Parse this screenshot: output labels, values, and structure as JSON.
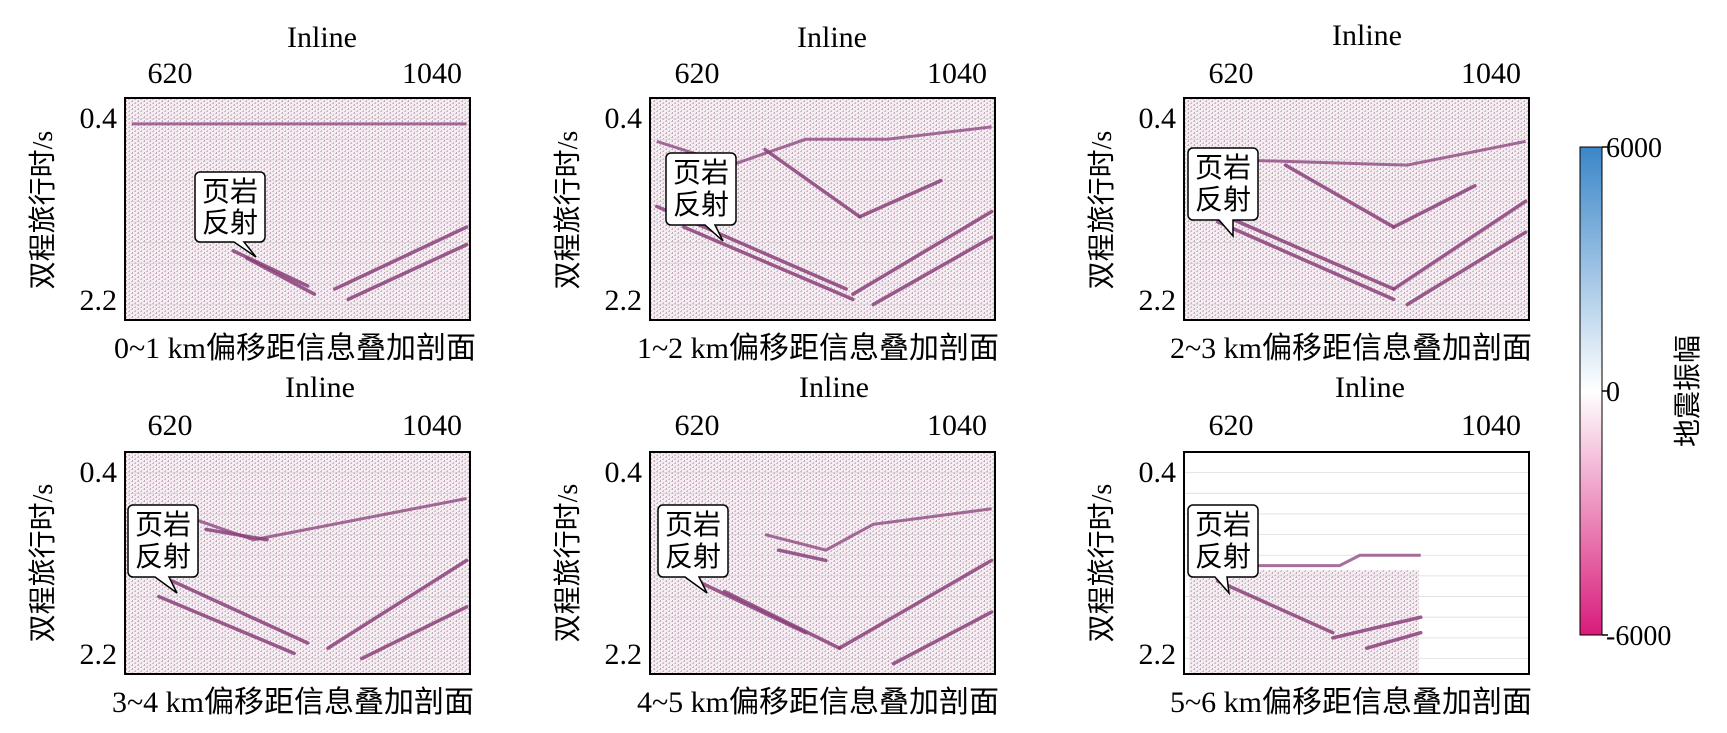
{
  "chart_data": [
    {
      "type": "heatmap",
      "title": "0~1 km偏移距信息叠加剖面",
      "xlabel": "Inline",
      "ylabel": "双程旅行时/s",
      "xticks": [
        "620",
        "1040"
      ],
      "xtick_values": [
        620,
        1040
      ],
      "yticks": [
        "0.4",
        "2.2"
      ],
      "ytick_values": [
        0.4,
        2.2
      ],
      "xlim": [
        570,
        1080
      ],
      "ylim": [
        2.35,
        0.2
      ],
      "annotation": {
        "line1": "页岩",
        "line2": "反射"
      },
      "reflectors": [
        {
          "x": [
            730,
            840
          ],
          "y": [
            1.68,
            2.02
          ]
        },
        {
          "x": [
            750,
            850
          ],
          "y": [
            1.75,
            2.1
          ]
        },
        {
          "x": [
            880,
            1075
          ],
          "y": [
            2.05,
            1.45
          ]
        },
        {
          "x": [
            900,
            1075
          ],
          "y": [
            2.15,
            1.62
          ]
        }
      ],
      "top_boundary": {
        "x": [
          580,
          1075
        ],
        "y": [
          0.45,
          0.45
        ]
      }
    },
    {
      "type": "heatmap",
      "title": "1~2 km偏移距信息叠加剖面",
      "xlabel": "Inline",
      "ylabel": "双程旅行时/s",
      "xticks": [
        "620",
        "1040"
      ],
      "xtick_values": [
        620,
        1040
      ],
      "yticks": [
        "0.4",
        "2.2"
      ],
      "ytick_values": [
        0.4,
        2.2
      ],
      "xlim": [
        570,
        1080
      ],
      "ylim": [
        2.35,
        0.2
      ],
      "annotation": {
        "line1": "页岩",
        "line2": "反射"
      },
      "reflectors": [
        {
          "x": [
            580,
            860
          ],
          "y": [
            1.25,
            2.05
          ]
        },
        {
          "x": [
            620,
            870
          ],
          "y": [
            1.45,
            2.15
          ]
        },
        {
          "x": [
            870,
            1075
          ],
          "y": [
            2.1,
            1.3
          ]
        },
        {
          "x": [
            900,
            1075
          ],
          "y": [
            2.2,
            1.55
          ]
        },
        {
          "x": [
            740,
            880
          ],
          "y": [
            0.7,
            1.35
          ]
        },
        {
          "x": [
            880,
            1000
          ],
          "y": [
            1.35,
            1.0
          ]
        }
      ],
      "top_boundary": {
        "x": [
          580,
          690,
          800,
          920,
          1075
        ],
        "y": [
          0.62,
          0.85,
          0.6,
          0.6,
          0.48
        ]
      }
    },
    {
      "type": "heatmap",
      "title": "2~3 km偏移距信息叠加剖面",
      "xlabel": "Inline",
      "ylabel": "双程旅行时/s",
      "xticks": [
        "620",
        "1040"
      ],
      "xtick_values": [
        620,
        1040
      ],
      "yticks": [
        "0.4",
        "2.2"
      ],
      "ytick_values": [
        0.4,
        2.2
      ],
      "xlim": [
        570,
        1080
      ],
      "ylim": [
        2.35,
        0.2
      ],
      "annotation": {
        "line1": "页岩",
        "line2": "反射"
      },
      "reflectors": [
        {
          "x": [
            580,
            880
          ],
          "y": [
            1.2,
            2.05
          ]
        },
        {
          "x": [
            620,
            880
          ],
          "y": [
            1.4,
            2.15
          ]
        },
        {
          "x": [
            880,
            1075
          ],
          "y": [
            2.05,
            1.2
          ]
        },
        {
          "x": [
            900,
            1075
          ],
          "y": [
            2.2,
            1.5
          ]
        },
        {
          "x": [
            720,
            880
          ],
          "y": [
            0.85,
            1.45
          ]
        },
        {
          "x": [
            880,
            1000
          ],
          "y": [
            1.45,
            1.05
          ]
        }
      ],
      "top_boundary": {
        "x": [
          650,
          900,
          1075
        ],
        "y": [
          0.8,
          0.85,
          0.62
        ]
      }
    },
    {
      "type": "heatmap",
      "title": "3~4 km偏移距信息叠加剖面",
      "xlabel": "Inline",
      "ylabel": "双程旅行时/s",
      "xticks": [
        "620",
        "1040"
      ],
      "xtick_values": [
        620,
        1040
      ],
      "yticks": [
        "0.4",
        "2.2"
      ],
      "ytick_values": [
        0.4,
        2.2
      ],
      "xlim": [
        570,
        1080
      ],
      "ylim": [
        2.35,
        0.2
      ],
      "annotation": {
        "line1": "页岩",
        "line2": "反射"
      },
      "reflectors": [
        {
          "x": [
            640,
            840
          ],
          "y": [
            1.45,
            2.05
          ]
        },
        {
          "x": [
            620,
            820
          ],
          "y": [
            1.6,
            2.15
          ]
        },
        {
          "x": [
            870,
            1075
          ],
          "y": [
            2.1,
            1.25
          ]
        },
        {
          "x": [
            920,
            1075
          ],
          "y": [
            2.2,
            1.7
          ]
        },
        {
          "x": [
            690,
            780
          ],
          "y": [
            0.95,
            1.05
          ]
        }
      ],
      "top_boundary": {
        "x": [
          650,
          760,
          1075
        ],
        "y": [
          0.8,
          1.05,
          0.65
        ]
      }
    },
    {
      "type": "heatmap",
      "title": "4~5 km偏移距信息叠加剖面",
      "xlabel": "Inline",
      "ylabel": "双程旅行时/s",
      "xticks": [
        "620",
        "1040"
      ],
      "xtick_values": [
        620,
        1040
      ],
      "yticks": [
        "0.4",
        "2.2"
      ],
      "ytick_values": [
        0.4,
        2.2
      ],
      "xlim": [
        570,
        1080
      ],
      "ylim": [
        2.35,
        0.2
      ],
      "annotation": {
        "line1": "页岩",
        "line2": "反射"
      },
      "reflectors": [
        {
          "x": [
            640,
            800
          ],
          "y": [
            1.45,
            1.95
          ]
        },
        {
          "x": [
            680,
            850
          ],
          "y": [
            1.55,
            2.1
          ]
        },
        {
          "x": [
            850,
            1075
          ],
          "y": [
            2.1,
            1.25
          ]
        },
        {
          "x": [
            930,
            1075
          ],
          "y": [
            2.25,
            1.75
          ]
        },
        {
          "x": [
            760,
            830
          ],
          "y": [
            1.15,
            1.25
          ]
        }
      ],
      "top_boundary": {
        "x": [
          740,
          830,
          900,
          1075
        ],
        "y": [
          1.0,
          1.15,
          0.9,
          0.75
        ]
      }
    },
    {
      "type": "heatmap",
      "title": "5~6 km偏移距信息叠加剖面",
      "xlabel": "Inline",
      "ylabel": "双程旅行时/s",
      "xticks": [
        "620",
        "1040"
      ],
      "xtick_values": [
        620,
        1040
      ],
      "yticks": [
        "0.4",
        "2.2"
      ],
      "ytick_values": [
        0.4,
        2.2
      ],
      "xlim": [
        570,
        1080
      ],
      "ylim": [
        2.35,
        0.2
      ],
      "annotation": {
        "line1": "页岩",
        "line2": "反射"
      },
      "reflectors": [
        {
          "x": [
            620,
            790
          ],
          "y": [
            1.45,
            1.95
          ]
        },
        {
          "x": [
            790,
            920
          ],
          "y": [
            2.0,
            1.8
          ]
        },
        {
          "x": [
            840,
            920
          ],
          "y": [
            2.1,
            1.95
          ]
        }
      ],
      "top_boundary": {
        "x": [
          650,
          800,
          830,
          920
        ],
        "y": [
          1.3,
          1.3,
          1.2,
          1.2
        ]
      }
    }
  ],
  "colorbar": {
    "label": "地震振幅",
    "ticks": [
      "6000",
      "0",
      "-6000"
    ],
    "tick_values": [
      6000,
      0,
      -6000
    ],
    "range": [
      -6000,
      6000
    ],
    "colors": {
      "high": "#3a86c8",
      "mid": "#ffffff",
      "low": "#d81b7a"
    }
  },
  "colors": {
    "trace": "#8a3f7a",
    "grid": "#cfcfcf",
    "frame": "#000000",
    "callout_bg": "#ffffff"
  }
}
